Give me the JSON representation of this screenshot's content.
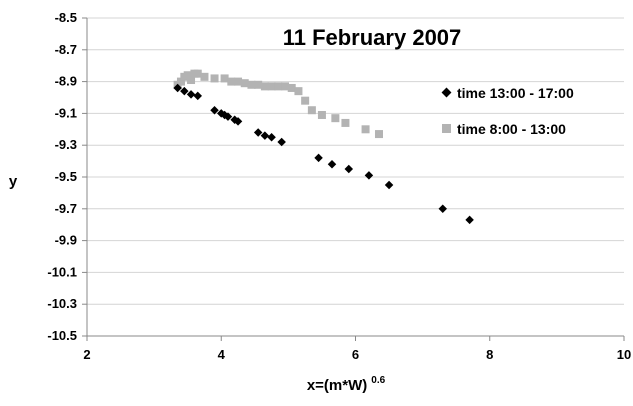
{
  "chart_data": {
    "type": "scatter",
    "title": "11 February 2007",
    "xlabel": "x=(m*W)",
    "xlabel_superscript": "0.6",
    "ylabel": "y",
    "xlim": [
      2,
      10
    ],
    "ylim": [
      -10.5,
      -8.5
    ],
    "x_ticks": [
      2,
      4,
      6,
      8,
      10
    ],
    "y_ticks": [
      -8.5,
      -8.7,
      -8.9,
      -9.1,
      -9.3,
      -9.5,
      -9.7,
      -9.9,
      -10.1,
      -10.3,
      -10.5
    ],
    "x_tick_labels": [
      "2",
      "4",
      "6",
      "8",
      "10"
    ],
    "y_tick_labels": [
      "-8.5",
      "-8.7",
      "-8.9",
      "-9.1",
      "-9.3",
      "-9.5",
      "-9.7",
      "-9.9",
      "-10.1",
      "-10.3",
      "-10.5"
    ],
    "grid": "horizontal",
    "legend_position": "right",
    "series": [
      {
        "name": "time 13:00 - 17:00",
        "marker": "diamond",
        "color": "#000000",
        "points": [
          [
            3.35,
            -8.94
          ],
          [
            3.45,
            -8.96
          ],
          [
            3.55,
            -8.98
          ],
          [
            3.65,
            -8.99
          ],
          [
            3.9,
            -9.08
          ],
          [
            4.0,
            -9.1
          ],
          [
            4.05,
            -9.11
          ],
          [
            4.1,
            -9.12
          ],
          [
            4.2,
            -9.14
          ],
          [
            4.25,
            -9.15
          ],
          [
            4.55,
            -9.22
          ],
          [
            4.65,
            -9.24
          ],
          [
            4.75,
            -9.25
          ],
          [
            4.9,
            -9.28
          ],
          [
            5.45,
            -9.38
          ],
          [
            5.65,
            -9.42
          ],
          [
            5.9,
            -9.45
          ],
          [
            6.2,
            -9.49
          ],
          [
            6.5,
            -9.55
          ],
          [
            7.3,
            -9.7
          ],
          [
            7.7,
            -9.77
          ]
        ]
      },
      {
        "name": "time 8:00 - 13:00",
        "marker": "square",
        "color": "#b3b3b3",
        "points": [
          [
            3.35,
            -8.92
          ],
          [
            3.4,
            -8.9
          ],
          [
            3.45,
            -8.87
          ],
          [
            3.5,
            -8.86
          ],
          [
            3.55,
            -8.89
          ],
          [
            3.6,
            -8.85
          ],
          [
            3.65,
            -8.85
          ],
          [
            3.75,
            -8.87
          ],
          [
            3.9,
            -8.88
          ],
          [
            4.05,
            -8.88
          ],
          [
            4.15,
            -8.9
          ],
          [
            4.25,
            -8.9
          ],
          [
            4.35,
            -8.91
          ],
          [
            4.45,
            -8.92
          ],
          [
            4.55,
            -8.92
          ],
          [
            4.65,
            -8.93
          ],
          [
            4.75,
            -8.93
          ],
          [
            4.85,
            -8.93
          ],
          [
            4.95,
            -8.93
          ],
          [
            5.05,
            -8.94
          ],
          [
            5.15,
            -8.96
          ],
          [
            5.25,
            -9.02
          ],
          [
            5.35,
            -9.08
          ],
          [
            5.5,
            -9.11
          ],
          [
            5.7,
            -9.13
          ],
          [
            5.85,
            -9.16
          ],
          [
            6.15,
            -9.2
          ],
          [
            6.35,
            -9.23
          ]
        ]
      }
    ]
  }
}
